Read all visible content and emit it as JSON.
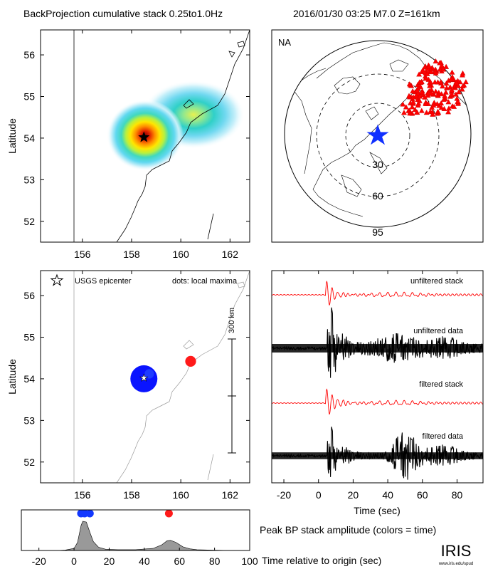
{
  "header": {
    "title": "BackProjection cumulative stack 0.25to1.0Hz",
    "event": "2016/01/30 03:25  M7.0  Z=161km"
  },
  "chart_data": [
    {
      "id": "bp-map",
      "type": "heatmap",
      "title": "BackProjection cumulative stack 0.25to1.0Hz",
      "ylabel": "Latitude",
      "xlim": [
        154.3,
        162.8
      ],
      "ylim": [
        51.5,
        56.6
      ],
      "x_ticks": [
        156,
        158,
        160,
        162
      ],
      "y_ticks": [
        52,
        53,
        54,
        55,
        56
      ],
      "hotspots": [
        {
          "lon": 158.5,
          "lat": 54.0,
          "intensity": 1.0
        },
        {
          "lon": 160.2,
          "lat": 54.5,
          "intensity": 0.55
        }
      ],
      "epicenter": {
        "lon": 158.5,
        "lat": 54.02
      }
    },
    {
      "id": "station-map",
      "type": "scatter",
      "label": "NA",
      "rings": [
        "30",
        "60",
        "95"
      ],
      "event_marker": {
        "label": "event"
      },
      "stations": "NA"
    },
    {
      "id": "maxima-map",
      "type": "scatter",
      "ylabel": "Latitude",
      "xlim": [
        154.3,
        162.8
      ],
      "ylim": [
        51.5,
        56.6
      ],
      "x_ticks": [
        156,
        158,
        160,
        162
      ],
      "y_ticks": [
        52,
        53,
        54,
        55,
        56
      ],
      "legend_star": "USGS epicenter",
      "legend_dots": "dots: local maxima",
      "scale_label": "300 km",
      "points": [
        {
          "lon": 158.5,
          "lat": 54.0,
          "size": 10,
          "color": "#0a14ff"
        },
        {
          "lon": 158.72,
          "lat": 54.12,
          "size": 3.5,
          "color": "#1f3cff"
        },
        {
          "lon": 160.4,
          "lat": 54.42,
          "size": 4,
          "color": "#ff1a1a"
        }
      ],
      "epicenter": {
        "lon": 158.5,
        "lat": 54.02
      }
    },
    {
      "id": "traces",
      "type": "line",
      "xlabel": "Time (sec)",
      "xlim": [
        -27,
        95
      ],
      "x_ticks": [
        -20,
        0,
        20,
        40,
        60,
        80
      ],
      "series": [
        {
          "name": "unfiltered stack",
          "color": "#ff0000"
        },
        {
          "name": "unfiltered data",
          "color": "#000000"
        },
        {
          "name": "filtered stack",
          "color": "#ff0000"
        },
        {
          "name": "filtered data",
          "color": "#000000"
        }
      ]
    },
    {
      "id": "peak-amplitude",
      "type": "area",
      "xlabel": "Time relative to origin (sec)",
      "caption": "Peak BP stack amplitude (colors = time)",
      "xlim": [
        -30,
        100
      ],
      "x_ticks": [
        -20,
        0,
        20,
        40,
        60,
        80,
        100
      ],
      "x": [
        -30,
        -10,
        -5,
        0,
        2,
        4,
        5,
        7,
        9,
        11,
        14,
        18,
        25,
        35,
        45,
        50,
        53,
        55,
        58,
        62,
        66,
        70,
        78,
        90,
        100
      ],
      "y": [
        0,
        0,
        0.01,
        0.05,
        0.2,
        0.62,
        0.72,
        0.7,
        0.45,
        0.22,
        0.08,
        0.03,
        0.02,
        0.02,
        0.05,
        0.14,
        0.24,
        0.25,
        0.2,
        0.09,
        0.04,
        0.02,
        0.01,
        0,
        0
      ],
      "markers": [
        {
          "x": 4,
          "color": "#1238ff"
        },
        {
          "x": 6,
          "color": "#1238ff"
        },
        {
          "x": 9,
          "color": "#1238ff"
        },
        {
          "x": 54,
          "color": "#ff1a1a"
        }
      ]
    }
  ],
  "logo": {
    "text": "IRIS",
    "url": "www.iris.edu/spud"
  }
}
